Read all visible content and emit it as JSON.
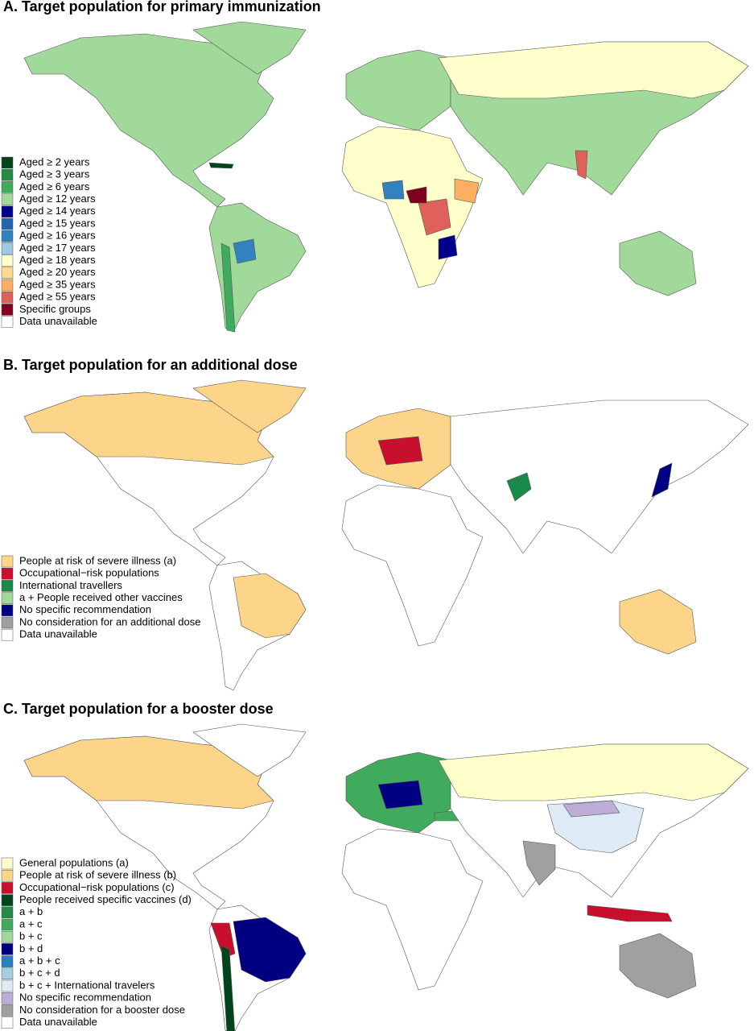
{
  "panels": [
    {
      "title": "A. Target population for primary immunization",
      "legend": [
        {
          "label": "Aged ≥ 2 years",
          "color": "#00441b"
        },
        {
          "label": "Aged ≥ 3 years",
          "color": "#238b45"
        },
        {
          "label": "Aged ≥ 6 years",
          "color": "#41ab5d"
        },
        {
          "label": "Aged ≥ 12 years",
          "color": "#a1d99b"
        },
        {
          "label": "Aged ≥ 14 years",
          "color": "#00008b"
        },
        {
          "label": "Aged ≥ 15 years",
          "color": "#2166ac"
        },
        {
          "label": "Aged ≥ 16 years",
          "color": "#3182bd"
        },
        {
          "label": "Aged ≥ 17 years",
          "color": "#9ecae1"
        },
        {
          "label": "Aged ≥ 18 years",
          "color": "#ffffcc"
        },
        {
          "label": "Aged ≥ 20 years",
          "color": "#fed98e"
        },
        {
          "label": "Aged ≥ 35 years",
          "color": "#fdae61"
        },
        {
          "label": "Aged ≥ 55 years",
          "color": "#e0605a"
        },
        {
          "label": "Specific groups",
          "color": "#800020"
        },
        {
          "label": "Data unavailable",
          "color": "#ffffff"
        }
      ]
    },
    {
      "title": "B. Target population for an additional dose",
      "legend": [
        {
          "label": "People at risk of severe illness (a)",
          "color": "#fdd58a"
        },
        {
          "label": "Occupational−risk populations",
          "color": "#c8102e"
        },
        {
          "label": "International travellers",
          "color": "#1a8a4a"
        },
        {
          "label": "a + People received other vaccines",
          "color": "#a1d99b"
        },
        {
          "label": "No specific recommendation",
          "color": "#000080"
        },
        {
          "label": "No consideration for an additional dose",
          "color": "#a0a0a0"
        },
        {
          "label": "Data unavailable",
          "color": "#ffffff"
        }
      ]
    },
    {
      "title": "C. Target population for a booster dose",
      "legend": [
        {
          "label": "General populations (a)",
          "color": "#ffffcc"
        },
        {
          "label": "People at risk of severe illness (b)",
          "color": "#fdd58a"
        },
        {
          "label": "Occupational−risk populations (c)",
          "color": "#c8102e"
        },
        {
          "label": "People received specific vaccines (d)",
          "color": "#00441b"
        },
        {
          "label": "a + b",
          "color": "#238b45"
        },
        {
          "label": "a + c",
          "color": "#41ab5d"
        },
        {
          "label": "b + c",
          "color": "#a1d99b"
        },
        {
          "label": "b + d",
          "color": "#000080"
        },
        {
          "label": "a + b + c",
          "color": "#2a7fc0"
        },
        {
          "label": "b + c + d",
          "color": "#a6cee3"
        },
        {
          "label": "b + c + International travelers",
          "color": "#deebf7"
        },
        {
          "label": "No specific recommendation",
          "color": "#bcaed8"
        },
        {
          "label": "No consideration for a booster dose",
          "color": "#a0a0a0"
        },
        {
          "label": "Data unavailable",
          "color": "#ffffff"
        }
      ]
    }
  ]
}
